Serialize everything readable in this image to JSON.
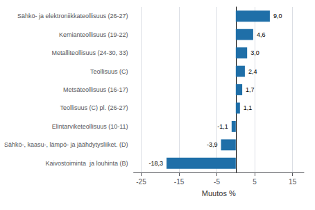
{
  "chart_data": {
    "type": "bar",
    "orientation": "horizontal",
    "categories": [
      "Kaivostoiminta  ja louhinta (B)",
      "Sähkö-, kaasu-, lämpö- ja jäähdytysliiket. (D)",
      "Elintarviketeollisuus (10-11)",
      "Teollisuus (C) pl. (26-27)",
      "Metsäteollisuus (16-17)",
      "Teollisuus (C)",
      "Metalliteollisuus (24-30, 33)",
      "Kemianteollisuus (19-22)",
      "Sähkö- ja elektroniikkateollisuus (26-27)"
    ],
    "values": [
      -18.3,
      -3.9,
      -1.1,
      1.1,
      1.7,
      2.4,
      3.0,
      4.6,
      9.0
    ],
    "value_labels": [
      "-18,3",
      "-3,9",
      "-1,1",
      "1,1",
      "1,7",
      "2,4",
      "3,0",
      "4,6",
      "9,0"
    ],
    "data_labels": true,
    "color": "#1f6fa8",
    "xlabel": "Muutos %",
    "xlim": [
      -27,
      18
    ],
    "xticks": [
      -25,
      -15,
      -5,
      5,
      15
    ],
    "grid": true
  }
}
